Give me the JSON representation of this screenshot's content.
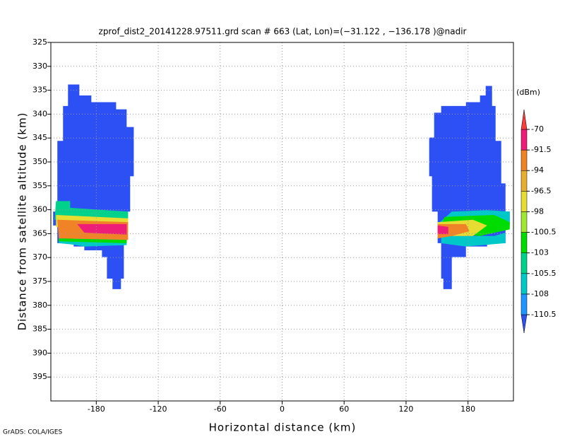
{
  "chart_data": {
    "type": "filled-contour",
    "title": "zprof_dist2_20141228.97511.grd   scan # 663   (Lat, Lon)=(−31.122 , −136.178 )@nadir",
    "x_label": "Horizontal distance (km)",
    "y_label": "Distance from satellite altitude (km)",
    "colorbar_unit": "(dBm)",
    "footer": "GrADS: COLA/IGES",
    "xlim": [
      -224,
      224
    ],
    "ylim": [
      325,
      400
    ],
    "y_inverted": true,
    "grid": true,
    "xticks": [
      -180,
      -120,
      -60,
      0,
      60,
      120,
      180
    ],
    "yticks": [
      325,
      330,
      335,
      340,
      345,
      350,
      355,
      360,
      365,
      370,
      375,
      380,
      385,
      390,
      395
    ],
    "levels": [
      -110.5,
      -108,
      -105.5,
      -103,
      -100.5,
      -98,
      -96.5,
      -94,
      -91.5,
      -70
    ],
    "colors": [
      "#2d50f5",
      "#1e96ff",
      "#00c8c8",
      "#00d28c",
      "#00dc00",
      "#a0e632",
      "#e6dc32",
      "#e6af2d",
      "#f08228",
      "#ee1e78",
      "#fa3c3c"
    ],
    "regions": [
      {
        "value": -112,
        "x": [
          -207.4,
          -196.4,
          -196.4,
          -184.8,
          -184.8,
          -160.8,
          -160.8,
          -150.6,
          -150.6,
          -143.7,
          -143.7,
          -147.2,
          -147.2,
          -150.6,
          -150.6,
          -153.3,
          -153.3,
          -156.1,
          -156.1,
          -164.3,
          -164.3,
          -169.7,
          -169.7,
          -174.5,
          -174.5,
          -191.6,
          -191.6,
          -201.9,
          -201.9,
          -217.7,
          -217.7,
          -221.8,
          -221.8,
          -217.7,
          -217.7,
          -212.2,
          -212.2,
          -207.4
        ],
        "y": [
          333.8,
          333.8,
          336.1,
          336.1,
          337.5,
          337.5,
          339.0,
          339.0,
          342.7,
          342.7,
          353.0,
          353.0,
          360.4,
          360.4,
          367.0,
          367.0,
          374.4,
          374.4,
          376.6,
          376.6,
          374.4,
          374.4,
          369.9,
          369.9,
          368.5,
          368.5,
          367.7,
          367.7,
          367.0,
          367.0,
          363.3,
          363.3,
          360.4,
          360.4,
          345.6,
          345.6,
          338.3,
          338.3
        ]
      },
      {
        "value": -106,
        "x": [
          -216.3,
          -150.6,
          -150.6,
          -191.6,
          -201.9,
          -216.3
        ],
        "y": [
          366.0,
          366.3,
          367.4,
          367.7,
          367.3,
          367.0
        ]
      },
      {
        "value": -102,
        "x": [
          -216.3,
          -150.6,
          -150.6,
          -216.3
        ],
        "y": [
          366.0,
          366.3,
          367.0,
          366.6
        ]
      },
      {
        "value": -104,
        "x": [
          -219.0,
          -205.3,
          -205.3,
          -149.2,
          -149.2,
          -220.4
        ],
        "y": [
          358.2,
          358.2,
          359.6,
          360.4,
          362.1,
          362.1
        ]
      },
      {
        "value": -97,
        "x": [
          -219.0,
          -149.2,
          -149.2,
          -219.0
        ],
        "y": [
          361.1,
          361.8,
          363.6,
          363.6
        ]
      },
      {
        "value": -93,
        "x": [
          -217.7,
          -149.2,
          -149.2,
          -216.3
        ],
        "y": [
          362.1,
          362.6,
          366.3,
          366.0
        ]
      },
      {
        "value": -85,
        "x": [
          -198.5,
          -150.6,
          -150.6,
          -191.6
        ],
        "y": [
          363.0,
          363.0,
          365.2,
          364.8
        ]
      },
      {
        "value": -112,
        "x": [
          142.4,
          147.2,
          147.2,
          154.0,
          154.0,
          178.0,
          178.0,
          191.6,
          191.6,
          197.1,
          197.1,
          203.3,
          203.3,
          206.7,
          206.7,
          212.2,
          212.2,
          216.3,
          216.3,
          220.4,
          220.4,
          216.3,
          216.3,
          198.5,
          198.5,
          178.0,
          178.0,
          164.3,
          164.3,
          156.1,
          156.1,
          154.0,
          154.0,
          150.6,
          150.6,
          145.1,
          145.1,
          142.4
        ],
        "y": [
          344.9,
          344.9,
          339.7,
          339.7,
          338.3,
          338.3,
          337.5,
          337.5,
          336.1,
          336.1,
          334.1,
          334.1,
          338.3,
          338.3,
          345.6,
          345.6,
          354.5,
          354.5,
          360.4,
          360.4,
          363.3,
          363.3,
          367.0,
          367.0,
          367.7,
          367.7,
          369.9,
          369.9,
          376.6,
          376.6,
          374.4,
          374.4,
          367.0,
          367.0,
          360.4,
          360.4,
          353.0,
          353.0
        ]
      },
      {
        "value": -106,
        "x": [
          164.3,
          198.5,
          220.4,
          220.4,
          150.6
        ],
        "y": [
          360.4,
          360.1,
          360.4,
          363.0,
          363.0
        ]
      },
      {
        "value": -106,
        "x": [
          154.0,
          205.3,
          216.3,
          216.3,
          178.0,
          154.0
        ],
        "y": [
          365.5,
          365.5,
          364.8,
          367.0,
          367.7,
          367.0
        ]
      },
      {
        "value": -101,
        "x": [
          157.4,
          205.3,
          220.4,
          220.4,
          191.6,
          150.6
        ],
        "y": [
          361.5,
          361.1,
          362.6,
          364.1,
          365.5,
          364.8
        ]
      },
      {
        "value": -97,
        "x": [
          150.6,
          184.8,
          198.5,
          184.8,
          150.6
        ],
        "y": [
          362.6,
          362.1,
          363.3,
          365.5,
          365.5
        ]
      },
      {
        "value": -93,
        "x": [
          150.6,
          178.0,
          181.4,
          164.3,
          150.6
        ],
        "y": [
          363.0,
          363.0,
          364.5,
          365.5,
          366.0
        ]
      },
      {
        "value": -85,
        "x": [
          150.6,
          160.9,
          160.9,
          150.6
        ],
        "y": [
          363.3,
          363.6,
          365.1,
          365.1
        ]
      }
    ]
  }
}
